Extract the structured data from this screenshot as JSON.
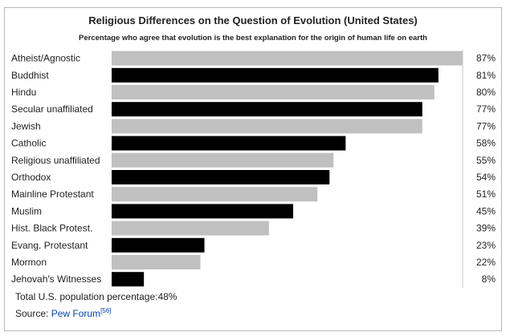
{
  "chart_data": {
    "type": "bar",
    "orientation": "horizontal",
    "title": "Religious Differences on the Question of Evolution (United States)",
    "subtitle": "Percentage who agree that evolution is the best explanation for the origin of human life on earth",
    "categories": [
      "Atheist/Agnostic",
      "Buddhist",
      "Hindu",
      "Secular unaffiliated",
      "Jewish",
      "Catholic",
      "Religious unaffiliated",
      "Orthodox",
      "Mainline Protestant",
      "Muslim",
      "Hist. Black Protest.",
      "Evang. Protestant",
      "Mormon",
      "Jehovah's Witnesses"
    ],
    "values": [
      87,
      81,
      80,
      77,
      77,
      58,
      55,
      54,
      51,
      45,
      39,
      23,
      22,
      8
    ],
    "value_labels": [
      "87%",
      "81%",
      "80%",
      "77%",
      "77%",
      "58%",
      "55%",
      "54%",
      "51%",
      "45%",
      "39%",
      "23%",
      "22%",
      "8%"
    ],
    "xlim": [
      0,
      87
    ],
    "bar_colors": [
      "#c0c0c0",
      "#000000"
    ],
    "grid": false,
    "legend": "none"
  },
  "footer": {
    "total_text": "Total U.S. population percentage:48%",
    "source_prefix": "Source: ",
    "source_link": "Pew Forum",
    "source_ref": "[56]"
  }
}
